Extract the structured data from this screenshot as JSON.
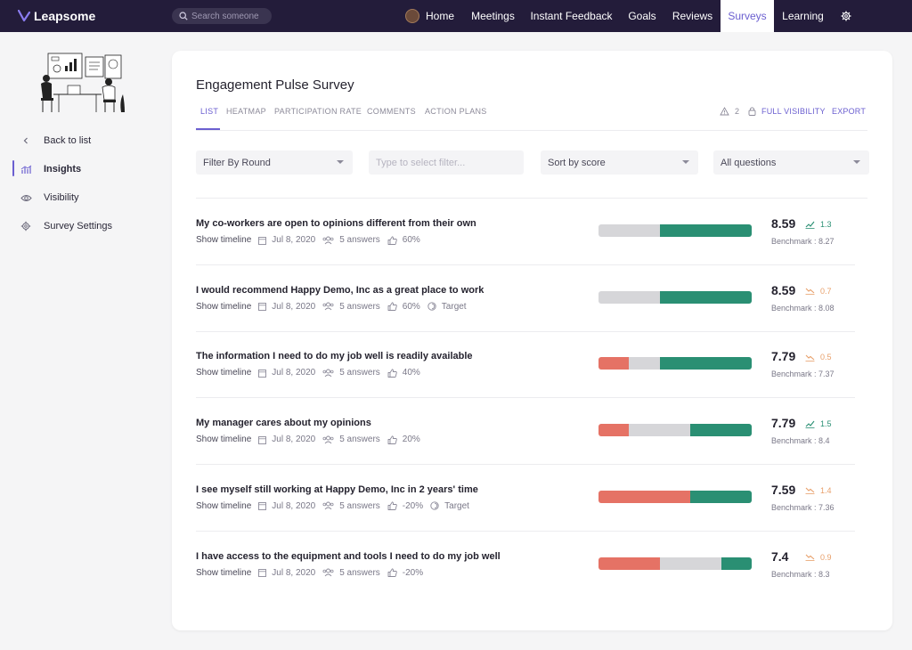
{
  "brand": {
    "name": "Leapsome"
  },
  "search": {
    "placeholder": "Search someone"
  },
  "nav": {
    "items": [
      {
        "label": "Home"
      },
      {
        "label": "Meetings"
      },
      {
        "label": "Instant Feedback"
      },
      {
        "label": "Goals"
      },
      {
        "label": "Reviews"
      },
      {
        "label": "Surveys",
        "active": true
      },
      {
        "label": "Learning"
      }
    ]
  },
  "sidebar": {
    "items": [
      {
        "label": "Back to list",
        "icon": "chevron-left-icon"
      },
      {
        "label": "Insights",
        "icon": "chart-icon",
        "active": true
      },
      {
        "label": "Visibility",
        "icon": "eye-icon"
      },
      {
        "label": "Survey Settings",
        "icon": "gear-icon"
      }
    ]
  },
  "survey": {
    "title": "Engagement Pulse Survey",
    "tabs": [
      "LIST",
      "HEATMAP",
      "PARTICIPATION RATE",
      "COMMENTS",
      "ACTION PLANS"
    ],
    "warning_count": "2",
    "visibility_label": "FULL VISIBILITY",
    "export_label": "EXPORT"
  },
  "filters": {
    "round": "Filter By Round",
    "filter_placeholder": "Type to select filter...",
    "sort": "Sort by score",
    "questions": "All questions"
  },
  "colors": {
    "accent": "#6b5fd0",
    "negative": "#e57265",
    "neutral": "#d6d6d9",
    "positive": "#2a8f73",
    "nav_bg": "#231c3a"
  },
  "questions": [
    {
      "title": "My co-workers are open to opinions different from their own",
      "show_timeline": "Show timeline",
      "date": "Jul 8, 2020",
      "answers": "5 answers",
      "approval": "60%",
      "target": "",
      "bar": {
        "negative": 0.0,
        "neutral": 0.4,
        "positive": 0.6
      },
      "score": "8.59",
      "trend": "1.3",
      "trend_dir": "up",
      "benchmark": "Benchmark : 8.27"
    },
    {
      "title": "I would recommend Happy Demo, Inc as a great place to work",
      "show_timeline": "Show timeline",
      "date": "Jul 8, 2020",
      "answers": "5 answers",
      "approval": "60%",
      "target": "Target",
      "bar": {
        "negative": 0.0,
        "neutral": 0.4,
        "positive": 0.6
      },
      "score": "8.59",
      "trend": "0.7",
      "trend_dir": "down",
      "benchmark": "Benchmark : 8.08"
    },
    {
      "title": "The information I need to do my job well is readily available",
      "show_timeline": "Show timeline",
      "date": "Jul 8, 2020",
      "answers": "5 answers",
      "approval": "40%",
      "target": "",
      "bar": {
        "negative": 0.2,
        "neutral": 0.2,
        "positive": 0.6
      },
      "score": "7.79",
      "trend": "0.5",
      "trend_dir": "down",
      "benchmark": "Benchmark : 7.37"
    },
    {
      "title": "My manager cares about my opinions",
      "show_timeline": "Show timeline",
      "date": "Jul 8, 2020",
      "answers": "5 answers",
      "approval": "20%",
      "target": "",
      "bar": {
        "negative": 0.2,
        "neutral": 0.4,
        "positive": 0.4
      },
      "score": "7.79",
      "trend": "1.5",
      "trend_dir": "up",
      "benchmark": "Benchmark : 8.4"
    },
    {
      "title": "I see myself still working at Happy Demo, Inc in 2 years' time",
      "show_timeline": "Show timeline",
      "date": "Jul 8, 2020",
      "answers": "5 answers",
      "approval": "-20%",
      "target": "Target",
      "bar": {
        "negative": 0.6,
        "neutral": 0.0,
        "positive": 0.4
      },
      "score": "7.59",
      "trend": "1.4",
      "trend_dir": "down",
      "benchmark": "Benchmark : 7.36"
    },
    {
      "title": "I have access to the equipment and tools I need to do my job well",
      "show_timeline": "Show timeline",
      "date": "Jul 8, 2020",
      "answers": "5 answers",
      "approval": "-20%",
      "target": "",
      "bar": {
        "negative": 0.4,
        "neutral": 0.4,
        "positive": 0.2
      },
      "score": "7.4",
      "trend": "0.9",
      "trend_dir": "down",
      "benchmark": "Benchmark : 8.3"
    }
  ]
}
